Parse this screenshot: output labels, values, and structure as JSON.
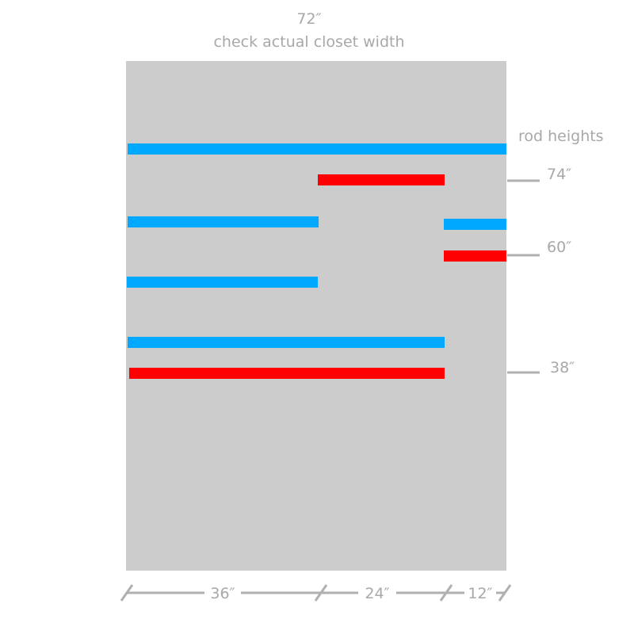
{
  "header": {
    "width": "72″",
    "note": "check actual closet width"
  },
  "rod_heights": {
    "title": "rod heights",
    "labels": [
      "74″",
      "60″",
      "38″"
    ]
  },
  "widths": [
    "36″",
    "24″",
    "12″"
  ]
}
